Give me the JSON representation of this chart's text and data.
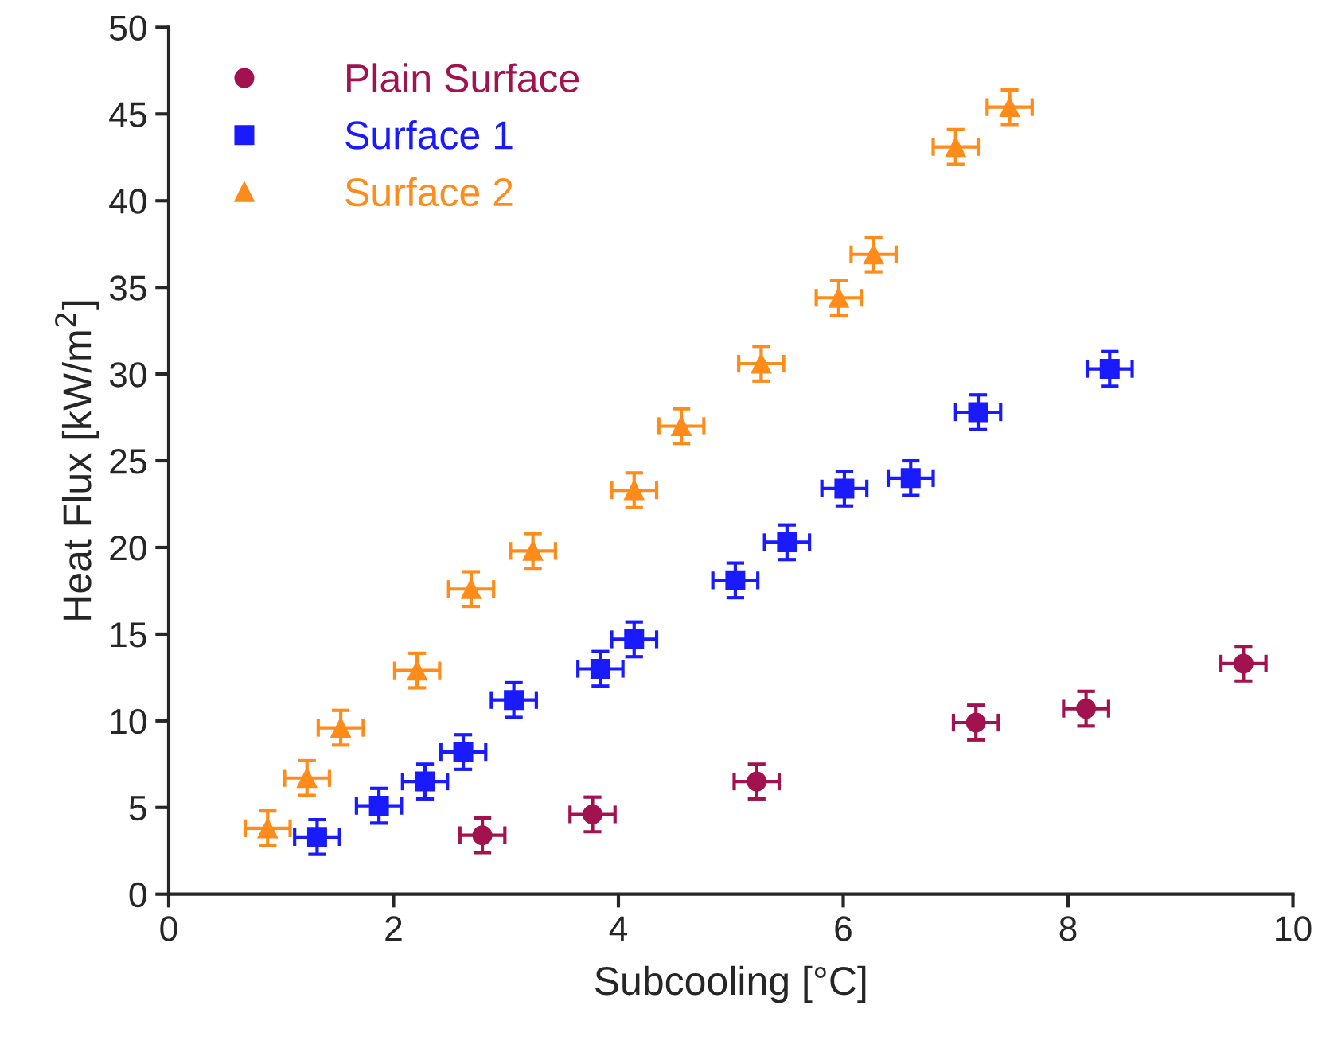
{
  "chart_data": {
    "type": "scatter",
    "xlabel": "Subcooling [°C]",
    "ylabel": "Heat Flux [kW/m$^{2}$]",
    "xlim": [
      0,
      10
    ],
    "xticks": [
      0,
      2,
      4,
      6,
      8,
      10
    ],
    "ylim": [
      0,
      50
    ],
    "yticks": [
      0,
      5,
      10,
      15,
      20,
      25,
      30,
      35,
      40,
      45,
      50
    ],
    "grid": false,
    "legend": "top left",
    "series": [
      {
        "name": "Plain Surface",
        "color": "#a2124f",
        "marker": "circle",
        "x": [
          2.79,
          3.77,
          5.23,
          7.18,
          8.16,
          9.56
        ],
        "values": [
          3.4,
          4.6,
          6.5,
          9.9,
          10.7,
          13.3
        ],
        "errors": [
          1,
          1,
          1,
          1,
          1,
          1
        ],
        "xerrors": [
          0.2,
          0.2,
          0.2,
          0.2,
          0.2,
          0.2
        ]
      },
      {
        "name": "Surface 1",
        "color": "#1a1aff",
        "marker": "square",
        "x": [
          1.32,
          1.87,
          2.28,
          2.62,
          3.07,
          3.84,
          4.14,
          5.04,
          5.5,
          6.01,
          6.6,
          7.2,
          8.37
        ],
        "values": [
          3.3,
          5.1,
          6.5,
          8.2,
          11.2,
          13.0,
          14.7,
          18.1,
          20.3,
          23.4,
          24.0,
          27.8,
          30.3
        ],
        "errors": [
          1,
          1,
          1,
          1,
          1,
          1,
          1,
          1,
          1,
          1,
          1,
          1,
          1
        ],
        "xerrors": [
          0.2,
          0.2,
          0.2,
          0.2,
          0.2,
          0.2,
          0.2,
          0.2,
          0.2,
          0.2,
          0.2,
          0.2,
          0.2
        ]
      },
      {
        "name": "Surface 2",
        "color": "#ff8c1a",
        "marker": "triangle",
        "x": [
          0.88,
          1.23,
          1.53,
          2.21,
          2.69,
          3.24,
          4.14,
          4.56,
          5.27,
          5.96,
          6.27,
          7.0,
          7.48
        ],
        "values": [
          3.8,
          6.7,
          9.6,
          12.9,
          17.6,
          19.8,
          23.3,
          27.0,
          30.6,
          34.4,
          36.9,
          43.1,
          45.4
        ],
        "errors": [
          1,
          1,
          1,
          1,
          1,
          1,
          1,
          1,
          1,
          1,
          1,
          1,
          1
        ],
        "xerrors": [
          0.2,
          0.2,
          0.2,
          0.2,
          0.2,
          0.2,
          0.2,
          0.2,
          0.2,
          0.2,
          0.2,
          0.2,
          0.2
        ]
      }
    ]
  }
}
